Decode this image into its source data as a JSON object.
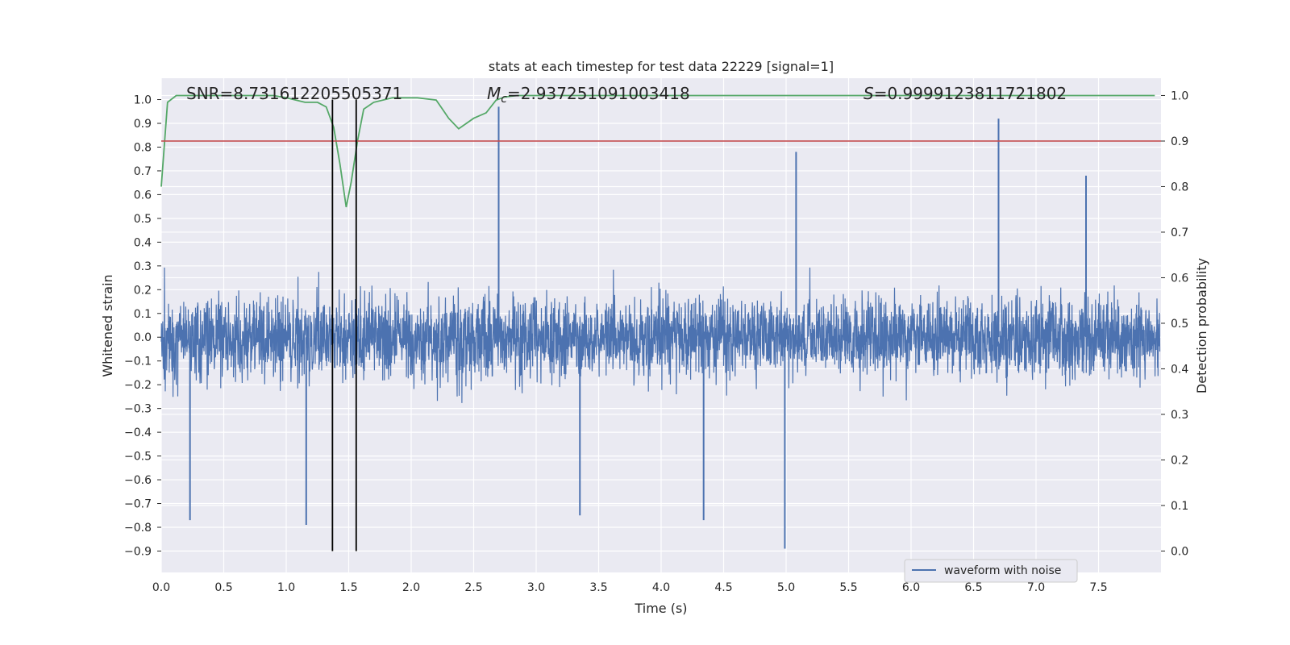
{
  "chart_data": {
    "type": "line",
    "title": "stats at each timestep for test data 22229 [signal=1]",
    "xlabel": "Time (s)",
    "ylabel": "Whitened strain",
    "y2label": "Detection probability",
    "xlim": [
      0.0,
      8.0
    ],
    "ylim": [
      -0.99,
      1.09
    ],
    "y2lim": [
      -0.047,
      1.038
    ],
    "grid": true,
    "background": "#EAEAF2",
    "x_ticks": [
      "0.0",
      "0.5",
      "1.0",
      "1.5",
      "2.0",
      "2.5",
      "3.0",
      "3.5",
      "4.0",
      "4.5",
      "5.0",
      "5.5",
      "6.0",
      "6.5",
      "7.0",
      "7.5"
    ],
    "y_ticks": [
      "−0.9",
      "−0.8",
      "−0.7",
      "−0.6",
      "−0.5",
      "−0.4",
      "−0.3",
      "−0.2",
      "−0.1",
      "0.0",
      "0.1",
      "0.2",
      "0.3",
      "0.4",
      "0.5",
      "0.6",
      "0.7",
      "0.8",
      "0.9",
      "1.0"
    ],
    "y2_ticks": [
      "0.0",
      "0.1",
      "0.2",
      "0.3",
      "0.4",
      "0.5",
      "0.6",
      "0.7",
      "0.8",
      "0.9",
      "1.0"
    ],
    "annotations": {
      "snr": "SNR=8.731612205505371",
      "mc_prefix": "M",
      "mc_sub": "c",
      "mc_value": "=2.937251091003418",
      "s_prefix": "S",
      "s_value": "=0.9999123811721802"
    },
    "series": [
      {
        "name": "waveform with noise",
        "axis": "left",
        "color": "#4C72B0",
        "kind": "noise",
        "envelope_typical": 0.35,
        "spikes": [
          {
            "x": 0.23,
            "y": -0.77
          },
          {
            "x": 1.16,
            "y": -0.79
          },
          {
            "x": 2.7,
            "y": 0.97
          },
          {
            "x": 3.35,
            "y": -0.75
          },
          {
            "x": 4.34,
            "y": -0.77
          },
          {
            "x": 4.99,
            "y": -0.89
          },
          {
            "x": 5.08,
            "y": 0.78
          },
          {
            "x": 6.7,
            "y": 0.92
          },
          {
            "x": 7.4,
            "y": 0.68
          }
        ]
      },
      {
        "axis": "right",
        "color": "#55A868",
        "x": [
          0.0,
          0.05,
          0.12,
          0.3,
          0.6,
          0.9,
          1.0,
          1.15,
          1.25,
          1.32,
          1.38,
          1.43,
          1.48,
          1.52,
          1.57,
          1.62,
          1.7,
          1.85,
          2.05,
          2.2,
          2.25,
          2.3,
          2.38,
          2.5,
          2.6,
          2.68,
          2.75,
          2.85,
          3.0,
          3.5,
          4.0,
          5.0,
          6.0,
          7.0,
          7.95
        ],
        "y": [
          0.8,
          0.985,
          1.0,
          1.0,
          1.0,
          1.0,
          0.995,
          0.985,
          0.985,
          0.975,
          0.93,
          0.85,
          0.755,
          0.81,
          0.9,
          0.97,
          0.985,
          0.995,
          0.995,
          0.99,
          0.97,
          0.95,
          0.927,
          0.95,
          0.962,
          0.99,
          0.997,
          1.0,
          1.0,
          1.0,
          1.0,
          1.0,
          1.0,
          1.0,
          1.0
        ]
      }
    ],
    "threshold": {
      "axis": "right",
      "value": 0.9,
      "color": "#C44E52"
    },
    "vlines": [
      {
        "x": 1.37,
        "ymin": -0.9,
        "ymax": 1.0,
        "color": "#000000"
      },
      {
        "x": 1.56,
        "ymin": -0.9,
        "ymax": 1.0,
        "color": "#000000"
      }
    ],
    "legend": {
      "position": "lower-center-right",
      "label": "waveform with noise"
    }
  }
}
